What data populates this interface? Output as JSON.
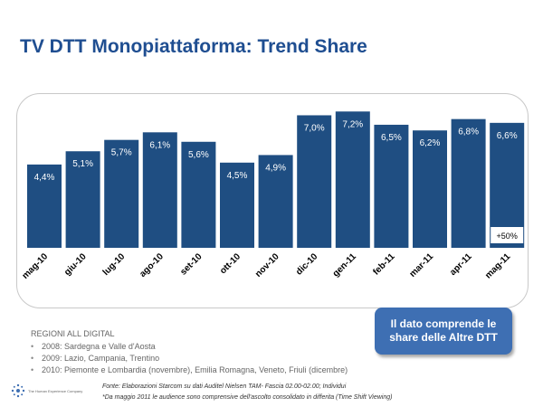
{
  "title": "TV DTT Monopiattaforma: Trend Share",
  "chart_data": {
    "type": "bar",
    "categories": [
      "mag-10",
      "giu-10",
      "lug-10",
      "ago-10",
      "set-10",
      "ott-10",
      "nov-10",
      "dic-10",
      "gen-11",
      "feb-11",
      "mar-11",
      "apr-11",
      "mag-11"
    ],
    "values": [
      4.4,
      5.1,
      5.7,
      6.1,
      5.6,
      4.5,
      4.9,
      7.0,
      7.2,
      6.5,
      6.2,
      6.8,
      6.6
    ],
    "labels": [
      "4,4%",
      "5,1%",
      "5,7%",
      "6,1%",
      "5,6%",
      "4,5%",
      "4,9%",
      "7,0%",
      "7,2%",
      "6,5%",
      "6,2%",
      "6,8%",
      "6,6%"
    ],
    "ylim": [
      0,
      7.5
    ],
    "bar_color": "#1f4e82",
    "annotation": "+50%",
    "grid": false,
    "legend": "none"
  },
  "callout": "Il dato comprende le share delle Altre DTT",
  "regions": {
    "title": "REGIONI ALL DIGITAL",
    "items": [
      "2008: Sardegna e Valle d'Aosta",
      "2009: Lazio, Campania, Trentino",
      "2010: Piemonte e Lombardia (novembre), Emilia Romagna, Veneto, Friuli (dicembre)"
    ]
  },
  "source": "Fonte: Elaborazioni Starcom su dati Auditel Nielsen TAM- Fascia 02.00-02.00; Individui",
  "footnote": "*Da maggio 2011 le audience sono comprensive dell'ascolto consolidato in differita (Time Shift Viewing)",
  "logo_text": "The Human Experience Company"
}
